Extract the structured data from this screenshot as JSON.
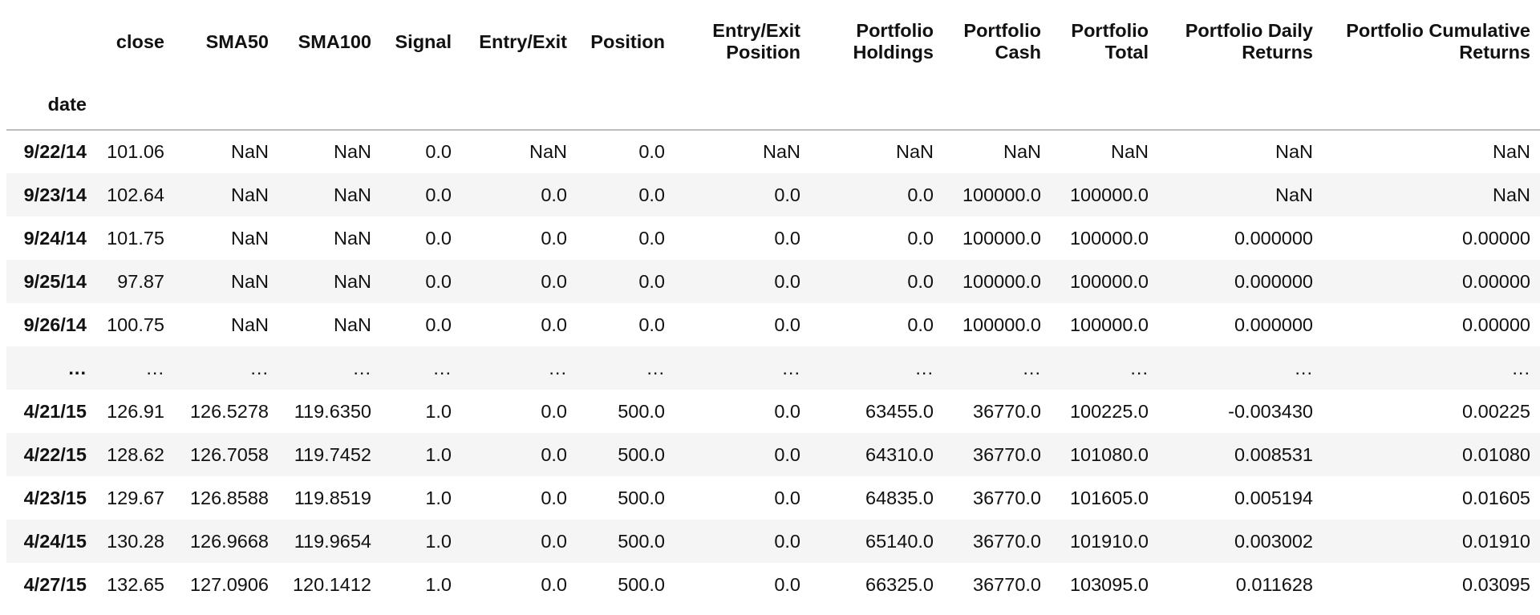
{
  "table": {
    "index_name": "date",
    "columns": [
      "close",
      "SMA50",
      "SMA100",
      "Signal",
      "Entry/Exit",
      "Position",
      "Entry/Exit Position",
      "Portfolio Holdings",
      "Portfolio Cash",
      "Portfolio Total",
      "Portfolio Daily Returns",
      "Portfolio Cumulative Returns"
    ],
    "rows": [
      {
        "date": "9/22/14",
        "cells": [
          "101.06",
          "NaN",
          "NaN",
          "0.0",
          "NaN",
          "0.0",
          "NaN",
          "NaN",
          "NaN",
          "NaN",
          "NaN",
          "NaN"
        ]
      },
      {
        "date": "9/23/14",
        "cells": [
          "102.64",
          "NaN",
          "NaN",
          "0.0",
          "0.0",
          "0.0",
          "0.0",
          "0.0",
          "100000.0",
          "100000.0",
          "NaN",
          "NaN"
        ]
      },
      {
        "date": "9/24/14",
        "cells": [
          "101.75",
          "NaN",
          "NaN",
          "0.0",
          "0.0",
          "0.0",
          "0.0",
          "0.0",
          "100000.0",
          "100000.0",
          "0.000000",
          "0.00000"
        ]
      },
      {
        "date": "9/25/14",
        "cells": [
          "97.87",
          "NaN",
          "NaN",
          "0.0",
          "0.0",
          "0.0",
          "0.0",
          "0.0",
          "100000.0",
          "100000.0",
          "0.000000",
          "0.00000"
        ]
      },
      {
        "date": "9/26/14",
        "cells": [
          "100.75",
          "NaN",
          "NaN",
          "0.0",
          "0.0",
          "0.0",
          "0.0",
          "0.0",
          "100000.0",
          "100000.0",
          "0.000000",
          "0.00000"
        ]
      },
      {
        "date": "...",
        "cells": [
          "...",
          "...",
          "...",
          "...",
          "...",
          "...",
          "...",
          "...",
          "...",
          "...",
          "...",
          "..."
        ]
      },
      {
        "date": "4/21/15",
        "cells": [
          "126.91",
          "126.5278",
          "119.6350",
          "1.0",
          "0.0",
          "500.0",
          "0.0",
          "63455.0",
          "36770.0",
          "100225.0",
          "-0.003430",
          "0.00225"
        ]
      },
      {
        "date": "4/22/15",
        "cells": [
          "128.62",
          "126.7058",
          "119.7452",
          "1.0",
          "0.0",
          "500.0",
          "0.0",
          "64310.0",
          "36770.0",
          "101080.0",
          "0.008531",
          "0.01080"
        ]
      },
      {
        "date": "4/23/15",
        "cells": [
          "129.67",
          "126.8588",
          "119.8519",
          "1.0",
          "0.0",
          "500.0",
          "0.0",
          "64835.0",
          "36770.0",
          "101605.0",
          "0.005194",
          "0.01605"
        ]
      },
      {
        "date": "4/24/15",
        "cells": [
          "130.28",
          "126.9668",
          "119.9654",
          "1.0",
          "0.0",
          "500.0",
          "0.0",
          "65140.0",
          "36770.0",
          "101910.0",
          "0.003002",
          "0.01910"
        ]
      },
      {
        "date": "4/27/15",
        "cells": [
          "132.65",
          "127.0906",
          "120.1412",
          "1.0",
          "0.0",
          "500.0",
          "0.0",
          "66325.0",
          "36770.0",
          "103095.0",
          "0.011628",
          "0.03095"
        ]
      }
    ]
  }
}
